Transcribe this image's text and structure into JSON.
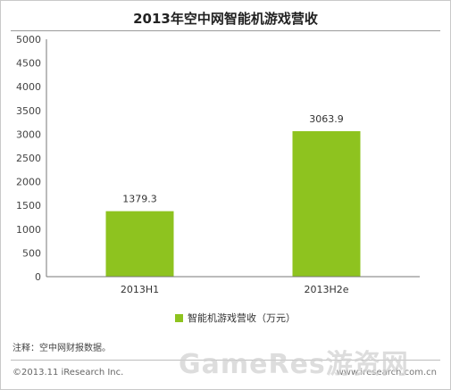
{
  "chart_data": {
    "type": "bar",
    "title": "2013年空中网智能机游戏营收",
    "categories": [
      "2013H1",
      "2013H2e"
    ],
    "series": [
      {
        "name": "智能机游戏营收（万元）",
        "values": [
          1379.3,
          3063.9
        ]
      }
    ],
    "value_labels": [
      "1379.3",
      "3063.9"
    ],
    "ylim": [
      0,
      5000
    ],
    "yticks": [
      "0",
      "500",
      "1000",
      "1500",
      "2000",
      "2500",
      "3000",
      "3500",
      "4000",
      "4500",
      "5000"
    ],
    "grid": false,
    "legend": "bottom-center",
    "bar_color": "#8ec31f"
  },
  "footer": {
    "note": "注释：空中网财报数据。",
    "copyright": "©2013.11 iResearch Inc.",
    "site": "www.iresearch.com.cn"
  },
  "watermark": "GameRes游资网"
}
